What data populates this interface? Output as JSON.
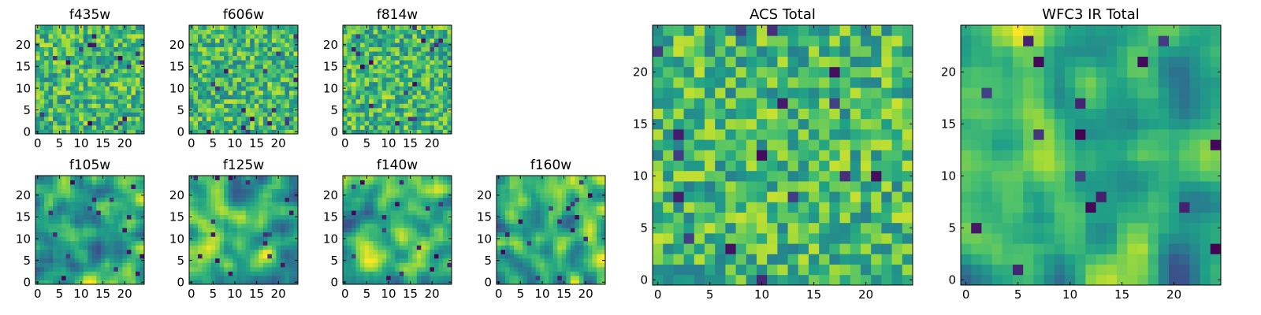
{
  "figure": {
    "colormap": "viridis",
    "colormap_stops": [
      "#440154",
      "#46327e",
      "#365c8d",
      "#277f8e",
      "#1fa187",
      "#4ac16d",
      "#a0da39",
      "#fde725"
    ],
    "background": "#ffffff"
  },
  "chart_data": [
    {
      "type": "heatmap",
      "title": "f435w",
      "grid_size": 25,
      "xticks": [
        0,
        5,
        10,
        15,
        20
      ],
      "yticks": [
        0,
        5,
        10,
        15,
        20
      ],
      "xlim": [
        -0.5,
        24.5
      ],
      "ylim": [
        -0.5,
        24.5
      ],
      "texture": "noise",
      "seed": 11
    },
    {
      "type": "heatmap",
      "title": "f606w",
      "grid_size": 25,
      "xticks": [
        0,
        5,
        10,
        15,
        20
      ],
      "yticks": [
        0,
        5,
        10,
        15,
        20
      ],
      "xlim": [
        -0.5,
        24.5
      ],
      "ylim": [
        -0.5,
        24.5
      ],
      "texture": "noise",
      "seed": 23
    },
    {
      "type": "heatmap",
      "title": "f814w",
      "grid_size": 25,
      "xticks": [
        0,
        5,
        10,
        15,
        20
      ],
      "yticks": [
        0,
        5,
        10,
        15,
        20
      ],
      "xlim": [
        -0.5,
        24.5
      ],
      "ylim": [
        -0.5,
        24.5
      ],
      "texture": "noise",
      "seed": 37
    },
    {
      "type": "heatmap",
      "title": "f105w",
      "grid_size": 25,
      "xticks": [
        0,
        5,
        10,
        15,
        20
      ],
      "yticks": [
        0,
        5,
        10,
        15,
        20
      ],
      "xlim": [
        -0.5,
        24.5
      ],
      "ylim": [
        -0.5,
        24.5
      ],
      "texture": "smooth",
      "seed": 41
    },
    {
      "type": "heatmap",
      "title": "f125w",
      "grid_size": 25,
      "xticks": [
        0,
        5,
        10,
        15,
        20
      ],
      "yticks": [
        0,
        5,
        10,
        15,
        20
      ],
      "xlim": [
        -0.5,
        24.5
      ],
      "ylim": [
        -0.5,
        24.5
      ],
      "texture": "smooth",
      "seed": 53
    },
    {
      "type": "heatmap",
      "title": "f140w",
      "grid_size": 25,
      "xticks": [
        0,
        5,
        10,
        15,
        20
      ],
      "yticks": [
        0,
        5,
        10,
        15,
        20
      ],
      "xlim": [
        -0.5,
        24.5
      ],
      "ylim": [
        -0.5,
        24.5
      ],
      "texture": "smooth",
      "seed": 67
    },
    {
      "type": "heatmap",
      "title": "f160w",
      "grid_size": 25,
      "xticks": [
        0,
        5,
        10,
        15,
        20
      ],
      "yticks": [
        0,
        5,
        10,
        15,
        20
      ],
      "xlim": [
        -0.5,
        24.5
      ],
      "ylim": [
        -0.5,
        24.5
      ],
      "texture": "smooth",
      "seed": 79
    },
    {
      "type": "heatmap",
      "title": "ACS Total",
      "grid_size": 25,
      "xticks": [
        0,
        5,
        10,
        15,
        20
      ],
      "yticks": [
        0,
        5,
        10,
        15,
        20
      ],
      "xlim": [
        -0.5,
        24.5
      ],
      "ylim": [
        -0.5,
        24.5
      ],
      "texture": "noise",
      "seed": 97
    },
    {
      "type": "heatmap",
      "title": "WFC3 IR Total",
      "grid_size": 25,
      "xticks": [
        0,
        5,
        10,
        15,
        20
      ],
      "yticks": [
        0,
        5,
        10,
        15,
        20
      ],
      "xlim": [
        -0.5,
        24.5
      ],
      "ylim": [
        -0.5,
        24.5
      ],
      "texture": "smooth",
      "seed": 131
    }
  ]
}
